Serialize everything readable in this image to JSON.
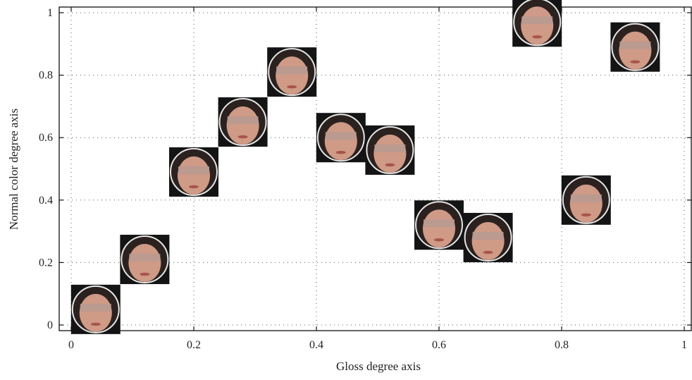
{
  "chart_data": {
    "type": "scatter",
    "title": "",
    "xlabel": "Gloss degree axis",
    "ylabel": "Normal color degree axis",
    "xlim": [
      0,
      1
    ],
    "ylim": [
      0,
      1
    ],
    "xticks": [
      0,
      0.2,
      0.4,
      0.6,
      0.8,
      1
    ],
    "yticks": [
      0,
      0.2,
      0.4,
      0.6,
      0.8,
      1
    ],
    "xtick_labels": [
      "0",
      "0.2",
      "0.4",
      "0.6",
      "0.8",
      "1"
    ],
    "ytick_labels": [
      "0",
      "0.2",
      "0.4",
      "0.6",
      "0.8",
      "1"
    ],
    "grid": true,
    "marker": "face-thumbnail",
    "points": [
      {
        "x": 0.04,
        "y": 0.05
      },
      {
        "x": 0.12,
        "y": 0.21
      },
      {
        "x": 0.2,
        "y": 0.49
      },
      {
        "x": 0.28,
        "y": 0.65
      },
      {
        "x": 0.36,
        "y": 0.81
      },
      {
        "x": 0.44,
        "y": 0.6
      },
      {
        "x": 0.52,
        "y": 0.56
      },
      {
        "x": 0.6,
        "y": 0.32
      },
      {
        "x": 0.68,
        "y": 0.28
      },
      {
        "x": 0.76,
        "y": 0.97
      },
      {
        "x": 0.84,
        "y": 0.4
      },
      {
        "x": 0.92,
        "y": 0.89
      }
    ]
  },
  "colors": {
    "background": "#ffffff",
    "axis": "#111111",
    "grid": "#555555",
    "face_background": "#141414",
    "skin": "#cf9a86",
    "hair": "#2b2220"
  }
}
